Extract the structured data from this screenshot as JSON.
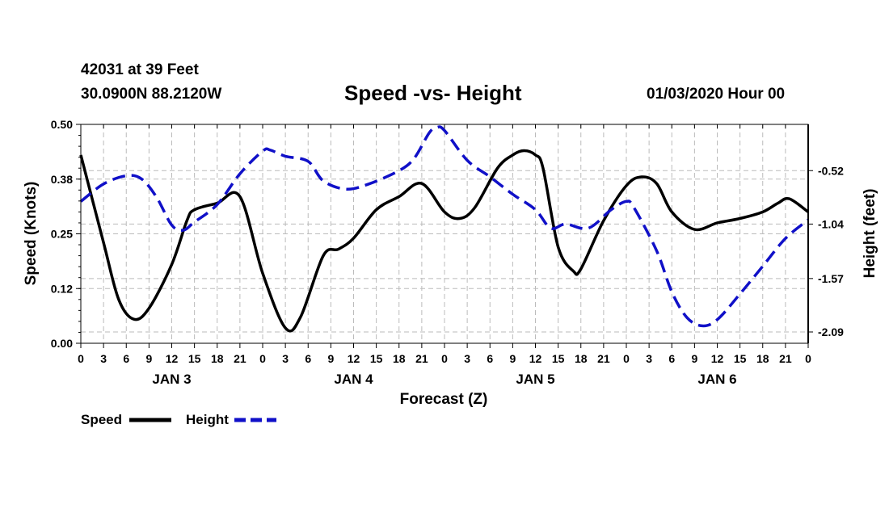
{
  "header": {
    "station_line": "42031 at 39 Feet",
    "location_line": "30.0900N 88.2120W",
    "title": "Speed -vs- Height",
    "date_line": "01/03/2020 Hour 00"
  },
  "legend": {
    "speed_label": "Speed",
    "height_label": "Height"
  },
  "colors": {
    "speed": "#000000",
    "height": "#1010c8",
    "grid": "#bbbbbb"
  },
  "chart_data": {
    "type": "line",
    "title": "Speed -vs- Height",
    "xlabel": "Forecast (Z)",
    "ylabel_left": "Speed (Knots)",
    "ylabel_right": "Height (feet)",
    "x_range": [
      0,
      96
    ],
    "x_tick_step": 3,
    "x_tick_labels": [
      "0",
      "3",
      "6",
      "9",
      "12",
      "15",
      "18",
      "21",
      "0",
      "3",
      "6",
      "9",
      "12",
      "15",
      "18",
      "21",
      "0",
      "3",
      "6",
      "9",
      "12",
      "15",
      "18",
      "21",
      "0",
      "3",
      "6",
      "9",
      "12",
      "15",
      "18",
      "21",
      "0"
    ],
    "day_labels": [
      {
        "label": "JAN 3",
        "x": 12
      },
      {
        "label": "JAN 4",
        "x": 36
      },
      {
        "label": "JAN 5",
        "x": 60
      },
      {
        "label": "JAN 6",
        "x": 84
      }
    ],
    "y_left": {
      "range": [
        0,
        0.5
      ],
      "ticks": [
        "0.00",
        "0.12",
        "0.25",
        "0.38",
        "0.50"
      ],
      "tick_values": [
        0,
        0.125,
        0.25,
        0.375,
        0.5
      ]
    },
    "y_right": {
      "range": [
        -2.2,
        -0.07
      ],
      "ticks": [
        "-0.52",
        "-1.04",
        "-1.57",
        "-2.09"
      ],
      "tick_values": [
        -0.52,
        -1.04,
        -1.57,
        -2.09
      ]
    },
    "grid": true,
    "legend_position": "bottom-left",
    "series": [
      {
        "name": "Speed",
        "axis": "left",
        "style": "solid",
        "points": [
          [
            0,
            0.43
          ],
          [
            3,
            0.23
          ],
          [
            5,
            0.1
          ],
          [
            7,
            0.055
          ],
          [
            9,
            0.08
          ],
          [
            12,
            0.18
          ],
          [
            14,
            0.28
          ],
          [
            15,
            0.305
          ],
          [
            18,
            0.32
          ],
          [
            21,
            0.335
          ],
          [
            24,
            0.16
          ],
          [
            27,
            0.035
          ],
          [
            29,
            0.06
          ],
          [
            32,
            0.2
          ],
          [
            34,
            0.215
          ],
          [
            36,
            0.24
          ],
          [
            39,
            0.305
          ],
          [
            42,
            0.335
          ],
          [
            45,
            0.365
          ],
          [
            48,
            0.3
          ],
          [
            50,
            0.285
          ],
          [
            52,
            0.31
          ],
          [
            55,
            0.4
          ],
          [
            57,
            0.43
          ],
          [
            58.5,
            0.44
          ],
          [
            60,
            0.43
          ],
          [
            61,
            0.4
          ],
          [
            63,
            0.22
          ],
          [
            65,
            0.165
          ],
          [
            66,
            0.17
          ],
          [
            69,
            0.28
          ],
          [
            72,
            0.36
          ],
          [
            74,
            0.38
          ],
          [
            76,
            0.365
          ],
          [
            78,
            0.3
          ],
          [
            81,
            0.26
          ],
          [
            84,
            0.275
          ],
          [
            87,
            0.285
          ],
          [
            90,
            0.3
          ],
          [
            92,
            0.32
          ],
          [
            93.5,
            0.33
          ],
          [
            96,
            0.3
          ]
        ]
      },
      {
        "name": "Height",
        "axis": "right",
        "style": "dashed",
        "points": [
          [
            0,
            -0.82
          ],
          [
            3,
            -0.65
          ],
          [
            6,
            -0.57
          ],
          [
            8,
            -0.6
          ],
          [
            10,
            -0.78
          ],
          [
            12,
            -1.05
          ],
          [
            13.5,
            -1.1
          ],
          [
            15,
            -1.02
          ],
          [
            18,
            -0.85
          ],
          [
            21,
            -0.55
          ],
          [
            24,
            -0.33
          ],
          [
            25,
            -0.32
          ],
          [
            27,
            -0.38
          ],
          [
            30,
            -0.43
          ],
          [
            32,
            -0.62
          ],
          [
            35,
            -0.7
          ],
          [
            38,
            -0.65
          ],
          [
            42,
            -0.52
          ],
          [
            44,
            -0.4
          ],
          [
            46,
            -0.15
          ],
          [
            47,
            -0.1
          ],
          [
            48,
            -0.13
          ],
          [
            51,
            -0.42
          ],
          [
            54,
            -0.58
          ],
          [
            57,
            -0.75
          ],
          [
            60,
            -0.9
          ],
          [
            62,
            -1.08
          ],
          [
            64,
            -1.04
          ],
          [
            67,
            -1.08
          ],
          [
            70,
            -0.9
          ],
          [
            72,
            -0.82
          ],
          [
            73,
            -0.88
          ],
          [
            76,
            -1.3
          ],
          [
            78,
            -1.7
          ],
          [
            80,
            -1.95
          ],
          [
            82,
            -2.03
          ],
          [
            84,
            -1.97
          ],
          [
            87,
            -1.72
          ],
          [
            90,
            -1.45
          ],
          [
            93,
            -1.18
          ],
          [
            96,
            -1.0
          ]
        ]
      }
    ]
  }
}
